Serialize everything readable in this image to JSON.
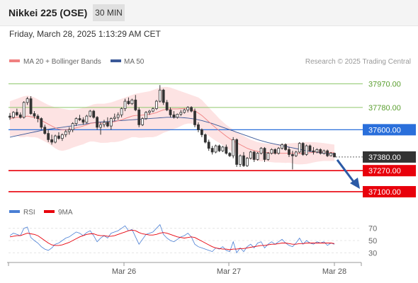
{
  "header": {
    "instrument": "Nikkei 225 (OSE)",
    "timeframe": "30 MIN"
  },
  "timestamp": "Friday, March 28, 2025 1:13:29 AM CET",
  "legend": {
    "ma20_bb": "MA 20 + Bollinger Bands",
    "ma50": "MA 50",
    "rsi": "RSI",
    "rsi_ma": "9MA"
  },
  "watermark": "Research © 2025 Trading Central",
  "colors": {
    "up": "#ffffff",
    "down": "#333333",
    "ma20": "#f08080",
    "bollinger_fill": "#fde3e3",
    "ma50": "#3b5998",
    "resistance": "#90c86c",
    "pivot": "#2a6fdb",
    "support": "#e8000b",
    "current": "#333333",
    "arrow": "#2b5aa6",
    "rsi": "#4a7fd4",
    "rsi_ma": "#e8000b"
  },
  "chart_data": [
    {
      "type": "candlestick",
      "title": "Nikkei 225 (OSE)",
      "timeframe": "30 MIN",
      "ylim": [
        37020,
        38070
      ],
      "x_ticks": [
        "Mar 26",
        "Mar 27",
        "Mar 28"
      ],
      "levels": [
        {
          "value": 37970,
          "label": "37970.00",
          "kind": "resistance"
        },
        {
          "value": 37780,
          "label": "37780.00",
          "kind": "resistance"
        },
        {
          "value": 37600,
          "label": "37600.00",
          "kind": "pivot"
        },
        {
          "value": 37380,
          "label": "37380.00",
          "kind": "current"
        },
        {
          "value": 37270,
          "label": "37270.00",
          "kind": "support"
        },
        {
          "value": 37100,
          "label": "37100.00",
          "kind": "support"
        }
      ],
      "candles_ohlc": [
        [
          37710,
          37735,
          37680,
          37700
        ],
        [
          37700,
          37750,
          37690,
          37740
        ],
        [
          37740,
          37770,
          37710,
          37720
        ],
        [
          37720,
          37740,
          37690,
          37700
        ],
        [
          37700,
          37830,
          37690,
          37820
        ],
        [
          37820,
          37865,
          37800,
          37850
        ],
        [
          37850,
          37870,
          37720,
          37730
        ],
        [
          37730,
          37750,
          37690,
          37710
        ],
        [
          37710,
          37725,
          37660,
          37690
        ],
        [
          37690,
          37700,
          37600,
          37620
        ],
        [
          37620,
          37640,
          37560,
          37570
        ],
        [
          37570,
          37600,
          37500,
          37520
        ],
        [
          37520,
          37560,
          37480,
          37500
        ],
        [
          37500,
          37560,
          37490,
          37550
        ],
        [
          37550,
          37580,
          37520,
          37530
        ],
        [
          37530,
          37570,
          37510,
          37560
        ],
        [
          37560,
          37600,
          37540,
          37585
        ],
        [
          37585,
          37620,
          37560,
          37600
        ],
        [
          37600,
          37660,
          37580,
          37650
        ],
        [
          37650,
          37700,
          37630,
          37690
        ],
        [
          37690,
          37720,
          37670,
          37680
        ],
        [
          37680,
          37700,
          37640,
          37660
        ],
        [
          37660,
          37720,
          37650,
          37710
        ],
        [
          37710,
          37760,
          37700,
          37750
        ],
        [
          37750,
          37760,
          37690,
          37700
        ],
        [
          37700,
          37710,
          37600,
          37620
        ],
        [
          37620,
          37660,
          37560,
          37640
        ],
        [
          37640,
          37680,
          37620,
          37660
        ],
        [
          37660,
          37700,
          37620,
          37630
        ],
        [
          37630,
          37700,
          37600,
          37690
        ],
        [
          37690,
          37730,
          37670,
          37700
        ],
        [
          37700,
          37740,
          37680,
          37720
        ],
        [
          37720,
          37780,
          37700,
          37770
        ],
        [
          37770,
          37850,
          37750,
          37830
        ],
        [
          37830,
          37860,
          37800,
          37810
        ],
        [
          37810,
          37850,
          37800,
          37840
        ],
        [
          37840,
          37880,
          37750,
          37760
        ],
        [
          37760,
          37780,
          37620,
          37640
        ],
        [
          37640,
          37700,
          37630,
          37690
        ],
        [
          37690,
          37750,
          37680,
          37740
        ],
        [
          37740,
          37760,
          37720,
          37750
        ],
        [
          37750,
          37780,
          37740,
          37770
        ],
        [
          37770,
          37840,
          37760,
          37830
        ],
        [
          37830,
          37960,
          37820,
          37920
        ],
        [
          37920,
          37930,
          37800,
          37820
        ],
        [
          37820,
          37840,
          37750,
          37760
        ],
        [
          37760,
          37780,
          37700,
          37720
        ],
        [
          37720,
          37750,
          37690,
          37700
        ],
        [
          37700,
          37730,
          37690,
          37725
        ],
        [
          37725,
          37760,
          37710,
          37740
        ],
        [
          37740,
          37770,
          37730,
          37760
        ],
        [
          37760,
          37790,
          37740,
          37780
        ],
        [
          37780,
          37790,
          37740,
          37750
        ],
        [
          37750,
          37770,
          37620,
          37640
        ],
        [
          37640,
          37660,
          37580,
          37600
        ],
        [
          37600,
          37610,
          37540,
          37560
        ],
        [
          37560,
          37570,
          37490,
          37500
        ],
        [
          37500,
          37520,
          37430,
          37450
        ],
        [
          37450,
          37470,
          37400,
          37420
        ],
        [
          37420,
          37480,
          37410,
          37470
        ],
        [
          37470,
          37480,
          37420,
          37430
        ],
        [
          37430,
          37470,
          37420,
          37460
        ],
        [
          37460,
          37480,
          37400,
          37410
        ],
        [
          37410,
          37420,
          37380,
          37390
        ],
        [
          37390,
          37540,
          37370,
          37520
        ],
        [
          37520,
          37530,
          37300,
          37320
        ],
        [
          37320,
          37400,
          37300,
          37390
        ],
        [
          37390,
          37420,
          37300,
          37310
        ],
        [
          37310,
          37380,
          37300,
          37370
        ],
        [
          37370,
          37430,
          37360,
          37420
        ],
        [
          37420,
          37430,
          37340,
          37360
        ],
        [
          37360,
          37420,
          37350,
          37410
        ],
        [
          37410,
          37460,
          37400,
          37450
        ],
        [
          37450,
          37460,
          37340,
          37360
        ],
        [
          37360,
          37420,
          37350,
          37410
        ],
        [
          37410,
          37450,
          37400,
          37440
        ],
        [
          37440,
          37450,
          37400,
          37410
        ],
        [
          37410,
          37460,
          37400,
          37450
        ],
        [
          37450,
          37490,
          37440,
          37480
        ],
        [
          37480,
          37490,
          37430,
          37440
        ],
        [
          37440,
          37460,
          37380,
          37400
        ],
        [
          37400,
          37430,
          37280,
          37390
        ],
        [
          37390,
          37430,
          37380,
          37420
        ],
        [
          37420,
          37500,
          37410,
          37490
        ],
        [
          37490,
          37500,
          37390,
          37400
        ],
        [
          37400,
          37480,
          37390,
          37470
        ],
        [
          37470,
          37480,
          37420,
          37430
        ],
        [
          37430,
          37460,
          37400,
          37420
        ],
        [
          37420,
          37450,
          37410,
          37440
        ],
        [
          37440,
          37450,
          37400,
          37410
        ],
        [
          37410,
          37440,
          37400,
          37430
        ],
        [
          37430,
          37440,
          37380,
          37390
        ],
        [
          37390,
          37420,
          37385,
          37410
        ],
        [
          37410,
          37415,
          37380,
          37380
        ]
      ],
      "ma20": [
        37690,
        37695,
        37700,
        37700,
        37705,
        37710,
        37705,
        37700,
        37690,
        37675,
        37660,
        37645,
        37630,
        37615,
        37605,
        37600,
        37600,
        37602,
        37608,
        37615,
        37622,
        37630,
        37640,
        37650,
        37655,
        37655,
        37652,
        37652,
        37655,
        37660,
        37665,
        37672,
        37680,
        37690,
        37700,
        37710,
        37715,
        37715,
        37718,
        37722,
        37725,
        37730,
        37738,
        37750,
        37760,
        37765,
        37768,
        37768,
        37768,
        37770,
        37772,
        37770,
        37765,
        37752,
        37735,
        37715,
        37690,
        37665,
        37640,
        37615,
        37592,
        37570,
        37548,
        37528,
        37510,
        37495,
        37480,
        37465,
        37450,
        37440,
        37432,
        37425,
        37420,
        37418,
        37415,
        37412,
        37410,
        37410,
        37410,
        37410,
        37412,
        37410,
        37408,
        37408,
        37410,
        37412,
        37415,
        37418,
        37420,
        37420,
        37420,
        37418,
        37416,
        37414
      ],
      "bb_upper": [
        37830,
        37840,
        37850,
        37860,
        37870,
        37875,
        37870,
        37860,
        37845,
        37830,
        37815,
        37800,
        37790,
        37780,
        37775,
        37770,
        37765,
        37760,
        37760,
        37765,
        37770,
        37778,
        37785,
        37795,
        37805,
        37810,
        37810,
        37810,
        37815,
        37820,
        37830,
        37840,
        37850,
        37860,
        37870,
        37880,
        37890,
        37895,
        37900,
        37905,
        37910,
        37920,
        37930,
        37940,
        37945,
        37945,
        37940,
        37930,
        37920,
        37910,
        37900,
        37890,
        37880,
        37870,
        37860,
        37840,
        37810,
        37780,
        37750,
        37720,
        37690,
        37665,
        37640,
        37620,
        37600,
        37580,
        37565,
        37550,
        37535,
        37520,
        37510,
        37500,
        37495,
        37490,
        37488,
        37486,
        37485,
        37485,
        37486,
        37488,
        37490,
        37492,
        37494,
        37496,
        37498,
        37500,
        37500,
        37500,
        37498,
        37495,
        37492,
        37488,
        37484,
        37480
      ],
      "bb_lower": [
        37550,
        37550,
        37550,
        37540,
        37540,
        37545,
        37540,
        37540,
        37535,
        37520,
        37505,
        37490,
        37470,
        37450,
        37435,
        37430,
        37435,
        37444,
        37456,
        37465,
        37474,
        37482,
        37495,
        37505,
        37505,
        37500,
        37494,
        37494,
        37495,
        37500,
        37500,
        37504,
        37510,
        37520,
        37530,
        37540,
        37540,
        37535,
        37536,
        37539,
        37540,
        37540,
        37546,
        37560,
        37575,
        37585,
        37596,
        37606,
        37616,
        37630,
        37644,
        37650,
        37650,
        37634,
        37610,
        37590,
        37570,
        37550,
        37530,
        37510,
        37494,
        37475,
        37456,
        37436,
        37420,
        37410,
        37395,
        37380,
        37365,
        37360,
        37354,
        37350,
        37345,
        37346,
        37342,
        37338,
        37335,
        37335,
        37334,
        37332,
        37334,
        37328,
        37322,
        37320,
        37322,
        37324,
        37330,
        37336,
        37342,
        37345,
        37348,
        37348,
        37348,
        37348
      ],
      "ma50": [
        37540,
        37546,
        37552,
        37558,
        37564,
        37570,
        37576,
        37582,
        37588,
        37594,
        37600,
        37604,
        37608,
        37612,
        37616,
        37620,
        37624,
        37628,
        37632,
        37636,
        37640,
        37644,
        37648,
        37652,
        37656,
        37660,
        37662,
        37664,
        37666,
        37668,
        37670,
        37672,
        37674,
        37676,
        37678,
        37680,
        37682,
        37684,
        37686,
        37688,
        37690,
        37692,
        37694,
        37696,
        37698,
        37700,
        37700,
        37700,
        37700,
        37698,
        37696,
        37694,
        37690,
        37686,
        37680,
        37674,
        37666,
        37658,
        37650,
        37640,
        37630,
        37620,
        37610,
        37600,
        37590,
        37580,
        37570,
        37560,
        37550,
        37540,
        37530,
        37520,
        37512,
        37504,
        37496,
        37490,
        37484,
        37478,
        37472,
        37466,
        37460,
        37454,
        37448,
        37442,
        37436,
        37430,
        37426,
        37422,
        37418,
        37414,
        37410,
        37408,
        37406,
        37404
      ],
      "projection": {
        "from": 37380,
        "to": 37100
      }
    },
    {
      "type": "line",
      "title": "RSI",
      "ylim": [
        20,
        80
      ],
      "yticks": [
        70,
        50,
        30
      ],
      "series": [
        {
          "name": "RSI",
          "values": [
            58,
            62,
            60,
            58,
            70,
            72,
            55,
            50,
            46,
            40,
            36,
            34,
            38,
            44,
            46,
            50,
            54,
            56,
            60,
            64,
            62,
            58,
            63,
            66,
            58,
            48,
            54,
            58,
            54,
            62,
            64,
            66,
            70,
            74,
            66,
            68,
            56,
            44,
            52,
            60,
            62,
            64,
            70,
            76,
            60,
            54,
            50,
            48,
            52,
            56,
            58,
            62,
            56,
            44,
            40,
            38,
            36,
            34,
            32,
            38,
            36,
            40,
            34,
            32,
            48,
            30,
            38,
            32,
            40,
            44,
            38,
            46,
            48,
            38,
            44,
            48,
            44,
            48,
            52,
            46,
            42,
            40,
            46,
            54,
            44,
            50,
            46,
            44,
            48,
            46,
            48,
            42,
            46,
            44
          ]
        },
        {
          "name": "9MA",
          "values": [
            56,
            57,
            58,
            58,
            60,
            62,
            61,
            60,
            58,
            54,
            50,
            46,
            43,
            42,
            42,
            43,
            45,
            47,
            50,
            53,
            56,
            58,
            60,
            61,
            61,
            59,
            58,
            58,
            57,
            57,
            58,
            60,
            62,
            64,
            66,
            67,
            66,
            63,
            61,
            60,
            59,
            59,
            60,
            62,
            63,
            62,
            60,
            58,
            56,
            55,
            54,
            55,
            56,
            55,
            52,
            49,
            46,
            43,
            40,
            38,
            37,
            36,
            36,
            35,
            36,
            36,
            37,
            37,
            38,
            39,
            40,
            41,
            42,
            42,
            43,
            44,
            44,
            45,
            46,
            46,
            45,
            44,
            44,
            45,
            45,
            46,
            46,
            46,
            46,
            46,
            46,
            46,
            46,
            45
          ]
        }
      ]
    }
  ]
}
